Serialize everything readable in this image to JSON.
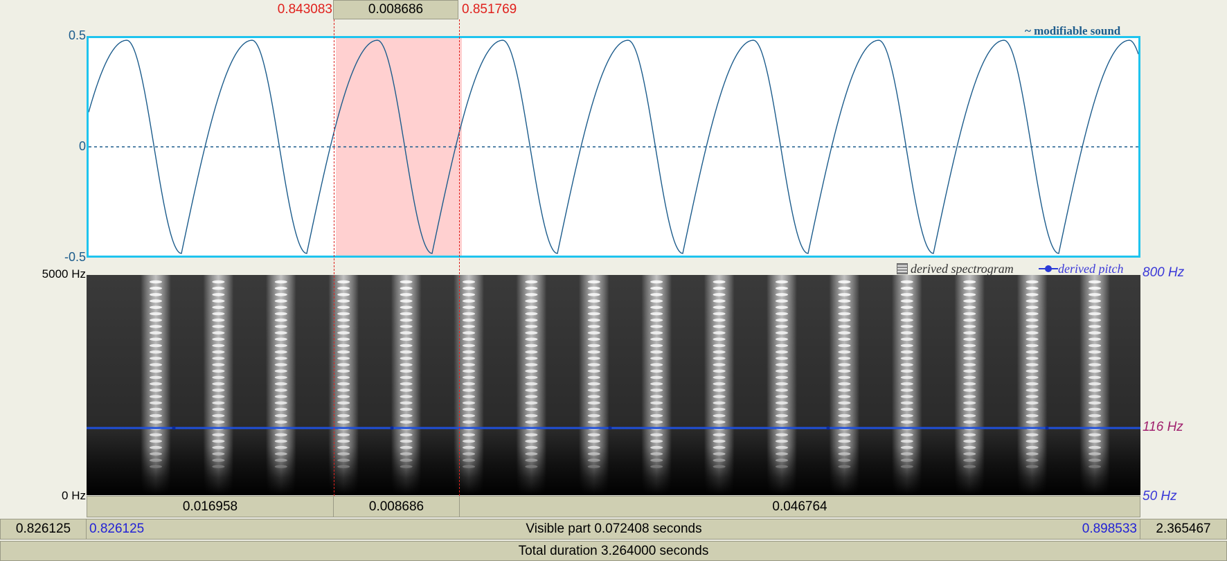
{
  "selection": {
    "start": "0.843083",
    "length": "0.008686",
    "end": "0.851769"
  },
  "waveform": {
    "y_max_label": "0.5",
    "y_zero_label": "0",
    "y_min_label": "-0.5",
    "legend": "~ modifiable sound",
    "color": "#1c5c8c",
    "border_color": "#1fc4ee",
    "selection_color": "#ffd0d0"
  },
  "spectrogram": {
    "top_label": "5000 Hz",
    "bottom_label": "0 Hz",
    "legend_spectrogram": "derived spectrogram",
    "legend_pitch": "derived pitch",
    "pitch_top_label": "800 Hz",
    "pitch_value_label": "116 Hz",
    "pitch_bottom_label": "50 Hz",
    "pitch_color": "#1f4fd8"
  },
  "duration_bar": {
    "left": "0.016958",
    "selection": "0.008686",
    "right": "0.046764"
  },
  "visible_bar": {
    "window_start": "0.826125",
    "visible_start": "0.826125",
    "visible_text": "Visible part 0.072408 seconds",
    "visible_end": "0.898533",
    "window_rest": "2.365467"
  },
  "total_bar": {
    "text": "Total duration 3.264000 seconds"
  }
}
